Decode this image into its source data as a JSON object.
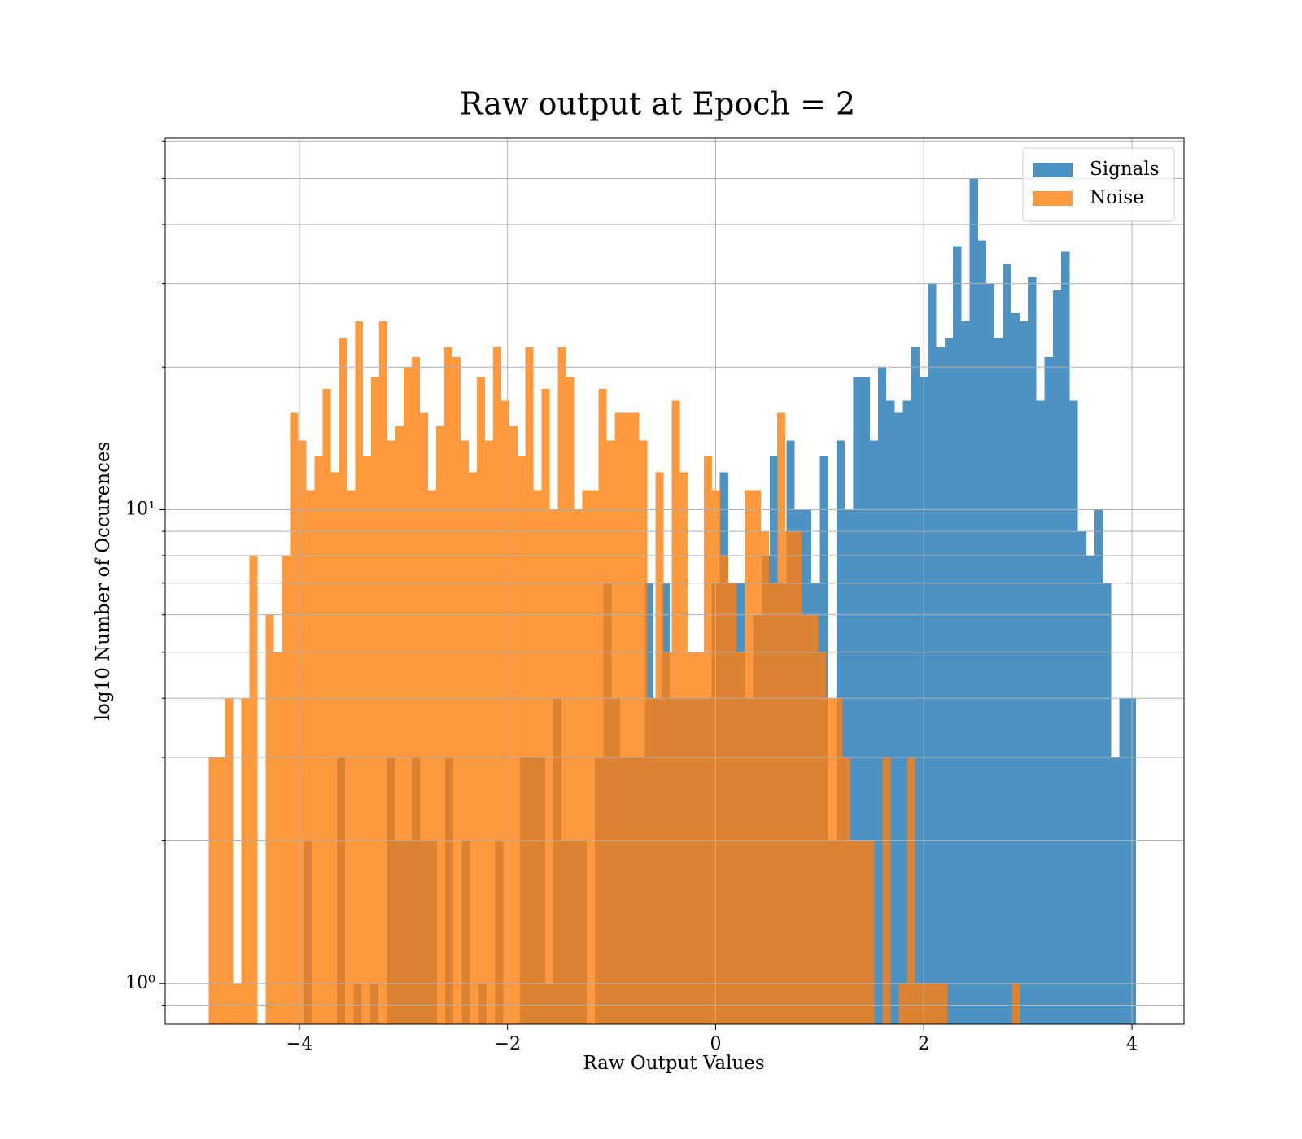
{
  "chart_data": {
    "type": "histogram",
    "title": "Raw output at Epoch = 2",
    "xlabel": "Raw Output Values",
    "ylabel": "log10 Number of Occurences",
    "xlim": [
      -5.29,
      4.5
    ],
    "ylim": [
      0.82,
      60.8
    ],
    "yscale": "log",
    "grid": true,
    "legend": "upper right",
    "xticks": [
      {
        "value": -4,
        "label": "−4"
      },
      {
        "value": -2,
        "label": "−2"
      },
      0,
      2,
      4
    ],
    "yticks": [
      {
        "value": 1,
        "label": "10⁰"
      },
      {
        "value": 10,
        "label": "10¹"
      }
    ],
    "yminorticks": [
      0.9,
      2,
      3,
      4,
      5,
      6,
      7,
      8,
      9,
      20,
      30,
      40,
      50,
      60
    ],
    "series": [
      {
        "name": "Signals",
        "color": "#1f77b4",
        "bins": [
          -3.96,
          -3.88,
          -3.8,
          -3.72,
          -3.64,
          -3.56,
          -3.48,
          -3.4,
          -3.32,
          -3.24,
          -3.16,
          -3.08,
          -3,
          -2.92,
          -2.84,
          -2.76,
          -2.68,
          -2.6,
          -2.52,
          -2.44,
          -2.36,
          -2.28,
          -2.2,
          -2.12,
          -2.04,
          -1.96,
          -1.88,
          -1.8,
          -1.72,
          -1.64,
          -1.56,
          -1.48,
          -1.4,
          -1.32,
          -1.24,
          -1.16,
          -1.08,
          -1,
          -0.92,
          -0.84,
          -0.76,
          -0.68,
          -0.6,
          -0.52,
          -0.44,
          -0.36,
          -0.28,
          -0.2,
          -0.12,
          -0.04,
          0.04,
          0.12,
          0.2,
          0.28,
          0.36,
          0.44,
          0.52,
          0.6,
          0.68,
          0.76,
          0.84,
          0.92,
          1,
          1.08,
          1.16,
          1.24,
          1.32,
          1.4,
          1.48,
          1.56,
          1.64,
          1.72,
          1.8,
          1.88,
          1.96,
          2.04,
          2.12,
          2.2,
          2.28,
          2.36,
          2.44,
          2.52,
          2.6,
          2.68,
          2.76,
          2.84,
          2.92,
          3,
          3.08,
          3.16,
          3.24,
          3.32,
          3.4,
          3.48,
          3.56,
          3.64,
          3.72,
          3.8,
          3.88,
          3.96,
          4.04
        ],
        "values": [
          2,
          0,
          0,
          0,
          3,
          0,
          1,
          0,
          1,
          0,
          3,
          2,
          2,
          3,
          2,
          2,
          0,
          3,
          0,
          2,
          0,
          1,
          0,
          2,
          0,
          0,
          3,
          3,
          3,
          1,
          4,
          2,
          2,
          2,
          0,
          3,
          7,
          4,
          3,
          3,
          3,
          7,
          4,
          7,
          4,
          4,
          4,
          4,
          4,
          7,
          12,
          7,
          7,
          4,
          6,
          8,
          13,
          7,
          14,
          10,
          10,
          7,
          13,
          2,
          14,
          10,
          19,
          19,
          14,
          20,
          17,
          16,
          17,
          22,
          19,
          30,
          22,
          23,
          36,
          25,
          50,
          37,
          30,
          23,
          33,
          26,
          25,
          31,
          17,
          21,
          29,
          35,
          17,
          9,
          8,
          10,
          7,
          3,
          4,
          4
        ]
      },
      {
        "name": "Noise",
        "color": "#ff7f0e",
        "bins": [
          -4.87,
          -4.792,
          -4.714,
          -4.636,
          -4.558,
          -4.48,
          -4.402,
          -4.324,
          -4.246,
          -4.168,
          -4.09,
          -4.012,
          -3.934,
          -3.856,
          -3.778,
          -3.7,
          -3.622,
          -3.544,
          -3.466,
          -3.388,
          -3.31,
          -3.232,
          -3.154,
          -3.076,
          -2.998,
          -2.92,
          -2.842,
          -2.764,
          -2.686,
          -2.608,
          -2.53,
          -2.452,
          -2.374,
          -2.296,
          -2.218,
          -2.14,
          -2.062,
          -1.984,
          -1.906,
          -1.828,
          -1.75,
          -1.672,
          -1.594,
          -1.516,
          -1.438,
          -1.36,
          -1.282,
          -1.204,
          -1.126,
          -1.048,
          -0.97,
          -0.892,
          -0.814,
          -0.736,
          -0.658,
          -0.58,
          -0.502,
          -0.424,
          -0.346,
          -0.268,
          -0.19,
          -0.112,
          -0.034,
          0.044,
          0.122,
          0.2,
          0.278,
          0.356,
          0.434,
          0.512,
          0.59,
          0.668,
          0.746,
          0.824,
          0.902,
          0.98,
          1.058,
          1.136,
          1.214,
          1.292,
          1.37,
          1.448,
          1.526,
          1.604,
          1.682,
          1.76,
          1.838,
          1.916,
          1.994,
          2.072,
          2.15,
          2.228,
          2.306,
          2.384,
          2.462,
          2.54,
          2.618,
          2.696,
          2.774,
          2.852,
          2.93
        ],
        "values": [
          3,
          3,
          4,
          1,
          4,
          8,
          0,
          6,
          5,
          8,
          16,
          14,
          11,
          13,
          18,
          12,
          23,
          11,
          25,
          13,
          19,
          25,
          14,
          15,
          20,
          21,
          16,
          11,
          15,
          22,
          21,
          14,
          12,
          19,
          14,
          22,
          17,
          15,
          13,
          22,
          11,
          18,
          10,
          22,
          19,
          10,
          11,
          11,
          18,
          14,
          16,
          16,
          16,
          14,
          4,
          12,
          5,
          17,
          12,
          5,
          5,
          13,
          11,
          8,
          7,
          5,
          11,
          11,
          9,
          7,
          16,
          9,
          9,
          6,
          6,
          5,
          4,
          4,
          3,
          2,
          2,
          2,
          0,
          3,
          0,
          1,
          3,
          1,
          1,
          1,
          1,
          0,
          0,
          0,
          0,
          0,
          0,
          0,
          0,
          1
        ]
      }
    ]
  }
}
